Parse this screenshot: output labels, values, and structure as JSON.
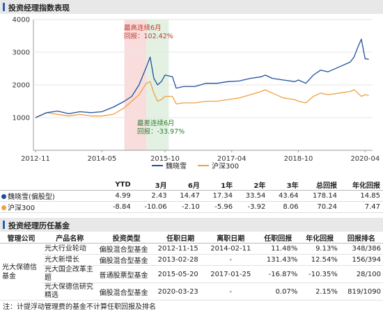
{
  "section1_title": "投资经理指数表现",
  "section2_title": "投资经理历任基金",
  "chart_data": {
    "type": "line",
    "x_ticks": [
      "2012-11",
      "2014-05",
      "2015-10",
      "2017-04",
      "2018-10",
      "2020-04"
    ],
    "y_ticks": [
      "1000",
      "2000",
      "3000",
      "4000"
    ],
    "ylim": [
      0,
      4000
    ],
    "series": [
      {
        "name": "魏晓雪",
        "color": "#1f4e9c",
        "x": [
          "2012-11",
          "2013-02",
          "2013-05",
          "2013-08",
          "2013-11",
          "2014-02",
          "2014-05",
          "2014-08",
          "2014-11",
          "2015-01",
          "2015-03",
          "2015-05",
          "2015-06",
          "2015-07",
          "2015-08",
          "2015-09",
          "2015-10",
          "2015-12",
          "2016-01",
          "2016-03",
          "2016-06",
          "2016-09",
          "2016-12",
          "2017-03",
          "2017-06",
          "2017-09",
          "2017-12",
          "2018-01",
          "2018-03",
          "2018-06",
          "2018-09",
          "2018-10",
          "2018-12",
          "2019-02",
          "2019-04",
          "2019-06",
          "2019-09",
          "2019-12",
          "2020-01",
          "2020-02",
          "2020-03",
          "2020-04",
          "2020-05"
        ],
        "y": [
          1000,
          1150,
          1200,
          1120,
          1180,
          1150,
          1180,
          1320,
          1500,
          1650,
          2000,
          2550,
          2850,
          2200,
          2000,
          2100,
          2300,
          2250,
          1900,
          1950,
          1950,
          2050,
          2050,
          2100,
          2120,
          2200,
          2250,
          2300,
          2200,
          2150,
          2100,
          2150,
          2050,
          2300,
          2450,
          2400,
          2550,
          2700,
          2850,
          3150,
          3400,
          2800,
          2780
        ]
      },
      {
        "name": "沪深300",
        "color": "#f0a040",
        "x": [
          "2012-11",
          "2013-02",
          "2013-05",
          "2013-08",
          "2013-11",
          "2014-02",
          "2014-05",
          "2014-08",
          "2014-11",
          "2015-01",
          "2015-03",
          "2015-05",
          "2015-06",
          "2015-07",
          "2015-08",
          "2015-09",
          "2015-10",
          "2015-12",
          "2016-01",
          "2016-03",
          "2016-06",
          "2016-09",
          "2016-12",
          "2017-03",
          "2017-06",
          "2017-09",
          "2017-12",
          "2018-01",
          "2018-03",
          "2018-06",
          "2018-09",
          "2018-10",
          "2018-12",
          "2019-02",
          "2019-04",
          "2019-06",
          "2019-09",
          "2019-12",
          "2020-01",
          "2020-02",
          "2020-03",
          "2020-04",
          "2020-05"
        ],
        "y": [
          1000,
          1150,
          1100,
          1050,
          1100,
          1050,
          1050,
          1100,
          1300,
          1500,
          1700,
          2050,
          2100,
          1750,
          1500,
          1550,
          1650,
          1650,
          1420,
          1450,
          1450,
          1500,
          1500,
          1550,
          1600,
          1700,
          1800,
          1850,
          1750,
          1600,
          1550,
          1500,
          1450,
          1650,
          1750,
          1700,
          1750,
          1800,
          1850,
          1750,
          1650,
          1700,
          1680
        ]
      }
    ],
    "annotations": [
      {
        "line1": "最高连续6月",
        "line2": "回报：102.42%",
        "color": "#c0392b"
      },
      {
        "line1": "最差连续6月",
        "line2": "回报：-33.97%",
        "color": "#2e7d32"
      }
    ]
  },
  "perf_table": {
    "headers": [
      "",
      "YTD",
      "3月",
      "6月",
      "1年",
      "2年",
      "3年",
      "总回报",
      "年化回报"
    ],
    "rows": [
      {
        "name": "魏晓雪(偏股型)",
        "color": "#1f4e9c",
        "values": [
          "4.99",
          "2.43",
          "14.47",
          "17.34",
          "33.54",
          "43.64",
          "178.14",
          "14.85"
        ]
      },
      {
        "name": "沪深300",
        "color": "#f0a040",
        "values": [
          "-8.84",
          "-10.06",
          "-2.10",
          "-5.96",
          "-3.92",
          "8.06",
          "70.24",
          "7.47"
        ]
      }
    ]
  },
  "history_table": {
    "headers": [
      "管理公司",
      "产品名称",
      "投资类型",
      "任职日期",
      "离职日期",
      "任职回报",
      "年化回报",
      "回报排名"
    ],
    "company": "光大保德信基金",
    "rows": [
      {
        "name": "光大行业轮动",
        "type": "偏股混合型基金",
        "start": "2012-11-15",
        "end": "2014-02-11",
        "ret": "11.48%",
        "ann": "9.13%",
        "rank": "348/386"
      },
      {
        "name": "光大新增长",
        "type": "偏股混合型基金",
        "start": "2013-02-28",
        "end": "-",
        "ret": "131.43%",
        "ann": "12.54%",
        "rank": "156/394"
      },
      {
        "name": "光大国企改革主题",
        "type": "普通股票型基金",
        "start": "2015-05-20",
        "end": "2017-01-25",
        "ret": "-16.87%",
        "ann": "-10.35%",
        "rank": "28/100"
      },
      {
        "name": "光大保德信研究精选",
        "type": "偏股混合型基金",
        "start": "2020-03-23",
        "end": "-",
        "ret": "0.07%",
        "ann": "2.15%",
        "rank": "819/1090"
      }
    ]
  },
  "note": "注：计提浮动管理费的基金不计算任职回报及排名"
}
